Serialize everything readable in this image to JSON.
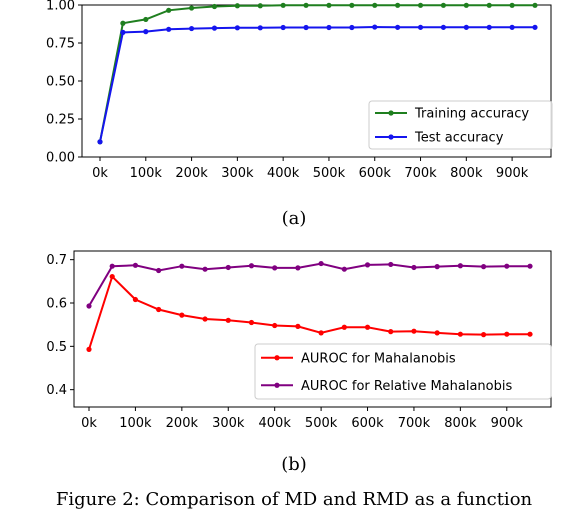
{
  "chart_data": [
    {
      "type": "line",
      "categories": [
        "0k",
        "50k",
        "100k",
        "150k",
        "200k",
        "250k",
        "300k",
        "350k",
        "400k",
        "450k",
        "500k",
        "550k",
        "600k",
        "650k",
        "700k",
        "750k",
        "800k",
        "850k",
        "900k",
        "950k"
      ],
      "x_tick_labels": [
        "0k",
        "100k",
        "200k",
        "300k",
        "400k",
        "500k",
        "600k",
        "700k",
        "800k",
        "900k"
      ],
      "y_tick_labels": [
        "0.00",
        "0.25",
        "0.50",
        "0.75",
        "1.00"
      ],
      "ylim": [
        0.0,
        1.0
      ],
      "series": [
        {
          "name": "Training accuracy",
          "color": "#1f7f1f",
          "values": [
            0.1,
            0.88,
            0.905,
            0.965,
            0.98,
            0.99,
            0.995,
            0.995,
            0.998,
            0.998,
            0.998,
            0.998,
            0.998,
            0.998,
            0.998,
            0.998,
            0.998,
            0.998,
            0.998,
            0.998
          ]
        },
        {
          "name": "Test accuracy",
          "color": "#1515ee",
          "values": [
            0.1,
            0.82,
            0.825,
            0.84,
            0.845,
            0.848,
            0.85,
            0.85,
            0.852,
            0.852,
            0.852,
            0.852,
            0.855,
            0.853,
            0.853,
            0.853,
            0.853,
            0.853,
            0.853,
            0.853
          ]
        }
      ],
      "legend_position": "lower-right",
      "grid": false,
      "caption": "(a)"
    },
    {
      "type": "line",
      "categories": [
        "0k",
        "50k",
        "100k",
        "150k",
        "200k",
        "250k",
        "300k",
        "350k",
        "400k",
        "450k",
        "500k",
        "550k",
        "600k",
        "650k",
        "700k",
        "750k",
        "800k",
        "850k",
        "900k",
        "950k"
      ],
      "x_tick_labels": [
        "0k",
        "100k",
        "200k",
        "300k",
        "400k",
        "500k",
        "600k",
        "700k",
        "800k",
        "900k"
      ],
      "y_tick_labels": [
        "0.4",
        "0.5",
        "0.6",
        "0.7"
      ],
      "ylim": [
        0.36,
        0.72
      ],
      "series": [
        {
          "name": "AUROC for Mahalanobis",
          "color": "#ff0000",
          "values": [
            0.493,
            0.661,
            0.608,
            0.585,
            0.572,
            0.563,
            0.56,
            0.555,
            0.548,
            0.546,
            0.531,
            0.544,
            0.544,
            0.534,
            0.535,
            0.531,
            0.528,
            0.527,
            0.528,
            0.528
          ]
        },
        {
          "name": "AUROC for Relative Mahalanobis",
          "color": "#800080",
          "values": [
            0.593,
            0.685,
            0.687,
            0.675,
            0.685,
            0.678,
            0.682,
            0.686,
            0.681,
            0.681,
            0.691,
            0.678,
            0.688,
            0.689,
            0.682,
            0.684,
            0.686,
            0.684,
            0.685,
            0.685
          ]
        }
      ],
      "legend_position": "lower-right",
      "grid": false,
      "caption": "(b)"
    }
  ],
  "figure_caption": "Figure 2: Comparison of MD and RMD as a function"
}
